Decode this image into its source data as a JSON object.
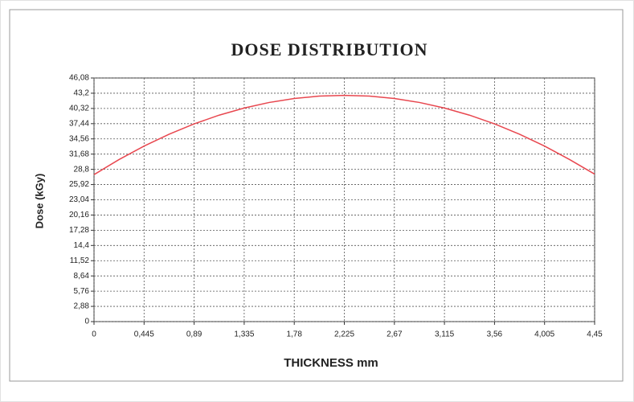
{
  "chart_data": {
    "type": "line",
    "title": "DOSE DISTRIBUTION",
    "x_label": "THICKNESS mm",
    "y_label": "Dose (kGy)",
    "x": [
      0,
      0.2225,
      0.445,
      0.6675,
      0.89,
      1.1125,
      1.335,
      1.5575,
      1.78,
      2.0025,
      2.225,
      2.4475,
      2.67,
      2.8925,
      3.115,
      3.3375,
      3.56,
      3.7825,
      4.005,
      4.2275,
      4.45
    ],
    "series": [
      {
        "name": "Dose",
        "color": "#e8474f",
        "values": [
          27.8,
          30.65,
          33.2,
          35.45,
          37.4,
          39.05,
          40.4,
          41.45,
          42.2,
          42.65,
          42.8,
          42.65,
          42.2,
          41.45,
          40.4,
          39.05,
          37.4,
          35.45,
          33.2,
          30.65,
          27.9
        ]
      }
    ],
    "xlim": [
      0,
      4.45
    ],
    "xticks": [
      0,
      {
        "value": 0.445,
        "label": "0,445"
      },
      {
        "value": 0.89,
        "label": "0,89"
      },
      {
        "value": 1.335,
        "label": "1,335"
      },
      {
        "value": 1.78,
        "label": "1,78"
      },
      {
        "value": 2.225,
        "label": "2,225"
      },
      {
        "value": 2.67,
        "label": "2,67"
      },
      {
        "value": 3.115,
        "label": "3,115"
      },
      {
        "value": 3.56,
        "label": "3,56"
      },
      {
        "value": 4.005,
        "label": "4,005"
      },
      {
        "value": 4.45,
        "label": "4,45"
      }
    ],
    "ylim": [
      0,
      46.08
    ],
    "yticks": [
      0,
      {
        "value": 2.88,
        "label": "2,88"
      },
      {
        "value": 5.76,
        "label": "5,76"
      },
      {
        "value": 8.64,
        "label": "8,64"
      },
      {
        "value": 11.52,
        "label": "11,52"
      },
      {
        "value": 14.4,
        "label": "14,4"
      },
      {
        "value": 17.28,
        "label": "17,28"
      },
      {
        "value": 20.16,
        "label": "20,16"
      },
      {
        "value": 23.04,
        "label": "23,04"
      },
      {
        "value": 25.92,
        "label": "25,92"
      },
      {
        "value": 28.8,
        "label": "28,8"
      },
      {
        "value": 31.68,
        "label": "31,68"
      },
      {
        "value": 34.56,
        "label": "34,56"
      },
      {
        "value": 37.44,
        "label": "37,44"
      },
      {
        "value": 40.32,
        "label": "40,32"
      },
      {
        "value": 43.2,
        "label": "43,2"
      },
      {
        "value": 46.08,
        "label": "46,08"
      }
    ],
    "grid": true
  }
}
